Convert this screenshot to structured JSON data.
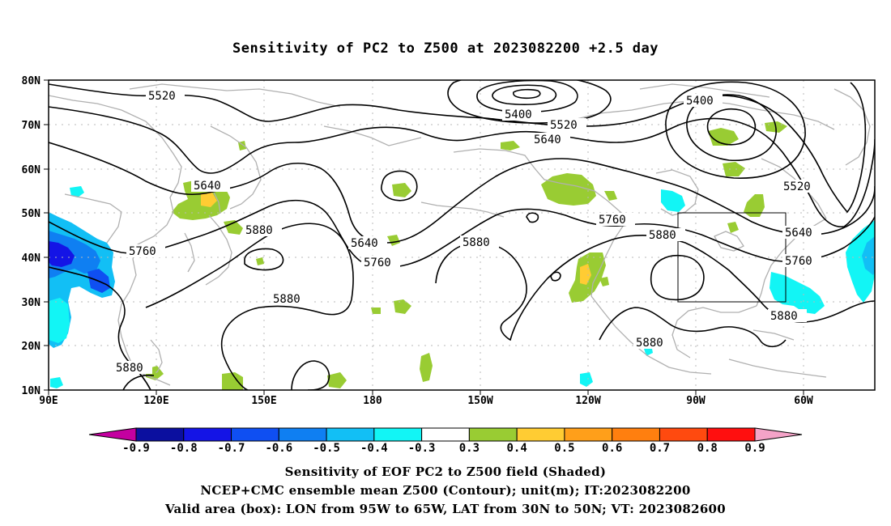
{
  "title": "Sensitivity of PC2 to Z500 at 2023082200 +2.5 day",
  "axes": {
    "lat_labels": [
      "80N",
      "70N",
      "60N",
      "50N",
      "40N",
      "30N",
      "20N",
      "10N"
    ],
    "lon_labels": [
      "90E",
      "120E",
      "150E",
      "180",
      "150W",
      "120W",
      "90W",
      "60W"
    ]
  },
  "contour_labels": {
    "c5520_a": "5520",
    "c5400_a": "5400",
    "c5520_b": "5520",
    "c5400_b": "5400",
    "c5640_a": "5640",
    "c5640_b": "5640",
    "c5520_c": "5520",
    "c5880_a": "5880",
    "c5760_a": "5760",
    "c5640_c": "5640",
    "c5880_b": "5880",
    "c5760_b": "5760",
    "c5880_c": "5880",
    "c5880_d": "5880",
    "c5640_d": "5640",
    "c5760_c": "5760",
    "c5880_e": "5880",
    "c5880_f": "5880",
    "c5760_d": "5760"
  },
  "colorbar": {
    "labels": [
      "-0.9",
      "-0.8",
      "-0.7",
      "-0.6",
      "-0.5",
      "-0.4",
      "-0.3",
      "0.3",
      "0.4",
      "0.5",
      "0.6",
      "0.7",
      "0.8",
      "0.9"
    ],
    "colors": [
      "#0b0f9f",
      "#1414e6",
      "#0f4ff2",
      "#0f7ff2",
      "#12bff5",
      "#12f5f5",
      "#ffffff",
      "#99cc33",
      "#ffcc33",
      "#ff9f1a",
      "#ff7f0f",
      "#ff4a0f",
      "#ff0f0f"
    ],
    "left_tip_color": "#c400a0",
    "right_tip_color": "#f4a3c8"
  },
  "legend_colors": {
    "negative_shading": "#12bff5",
    "positive_shading": "#99cc33",
    "contour": "#000000",
    "coastline": "#b0b0b0",
    "box": "#000000"
  },
  "valid_box": {
    "lon_w": -95,
    "lon_e": -65,
    "lat_s": 30,
    "lat_n": 50
  },
  "captions": {
    "line1": "Sensitivity of EOF PC2 to Z500 field (Shaded)",
    "line2": "NCEP+CMC ensemble mean Z500 (Contour); unit(m); IT:2023082200",
    "line3": "Valid area (box): LON from 95W to 65W, LAT from 30N to 50N; VT: 2023082600"
  }
}
